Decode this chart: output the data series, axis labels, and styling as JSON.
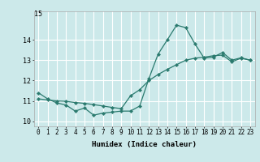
{
  "xlabel": "Humidex (Indice chaleur)",
  "bg_color": "#cce9ea",
  "grid_color": "#b0d8da",
  "line_color": "#2a7a6e",
  "xlim": [
    -0.5,
    23.5
  ],
  "ylim": [
    9.75,
    15.4
  ],
  "xticks": [
    0,
    1,
    2,
    3,
    4,
    5,
    6,
    7,
    8,
    9,
    10,
    11,
    12,
    13,
    14,
    15,
    16,
    17,
    18,
    19,
    20,
    21,
    22,
    23
  ],
  "yticks": [
    10,
    11,
    12,
    13,
    14
  ],
  "top_label": "15",
  "curve1_x": [
    0,
    1,
    2,
    3,
    4,
    5,
    6,
    7,
    8,
    9,
    10,
    11,
    12,
    13,
    14,
    15,
    16,
    17,
    18,
    19,
    20,
    21,
    22,
    23
  ],
  "curve1_y": [
    11.4,
    11.1,
    10.9,
    10.8,
    10.5,
    10.65,
    10.3,
    10.4,
    10.45,
    10.5,
    10.5,
    10.75,
    12.1,
    13.3,
    14.0,
    14.72,
    14.6,
    13.8,
    13.1,
    13.15,
    13.38,
    13.0,
    13.12,
    13.0
  ],
  "curve2_x": [
    0,
    1,
    2,
    3,
    4,
    5,
    6,
    7,
    8,
    9,
    10,
    11,
    12,
    13,
    14,
    15,
    16,
    17,
    18,
    19,
    20,
    21,
    22,
    23
  ],
  "curve2_y": [
    11.1,
    11.05,
    11.0,
    10.98,
    10.92,
    10.88,
    10.82,
    10.75,
    10.68,
    10.62,
    11.25,
    11.55,
    12.0,
    12.3,
    12.55,
    12.78,
    13.0,
    13.1,
    13.15,
    13.22,
    13.25,
    12.92,
    13.1,
    13.0
  ],
  "tick_fontsize": 5.5,
  "xlabel_fontsize": 6.5,
  "marker_size": 2.2,
  "line_width": 0.9
}
